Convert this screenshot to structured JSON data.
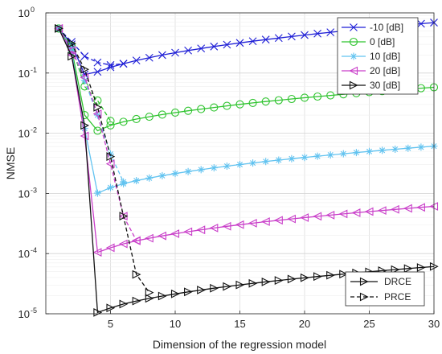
{
  "chart_data": {
    "type": "line",
    "title": "",
    "xlabel": "Dimension of the regression model",
    "ylabel": "NMSE",
    "xlim": [
      0,
      30
    ],
    "ylim": [
      1e-05,
      1
    ],
    "yscale": "log",
    "x_ticks": [
      5,
      10,
      15,
      20,
      25,
      30
    ],
    "x_tick_labels": [
      "5",
      "10",
      "15",
      "20",
      "25",
      "30"
    ],
    "y_ticks": [
      1e-05,
      0.0001,
      0.001,
      0.01,
      0.1,
      1
    ],
    "y_tick_labels": [
      {
        "base": "10",
        "exp": "-5"
      },
      {
        "base": "10",
        "exp": "-4"
      },
      {
        "base": "10",
        "exp": "-3"
      },
      {
        "base": "10",
        "exp": "-2"
      },
      {
        "base": "10",
        "exp": "-1"
      },
      {
        "base": "10",
        "exp": "0"
      }
    ],
    "grid": true,
    "minor_grid": true,
    "snr_legend": {
      "position": "top-right",
      "entries": [
        {
          "label": "-10 [dB]",
          "color": "#1f1fd6",
          "marker": "x"
        },
        {
          "label": "0 [dB]",
          "color": "#2fc42f",
          "marker": "circle"
        },
        {
          "label": "10 [dB]",
          "color": "#62c3f0",
          "marker": "star"
        },
        {
          "label": "20 [dB]",
          "color": "#c93ec9",
          "marker": "triangle-left"
        },
        {
          "label": "30 [dB]",
          "color": "#111111",
          "marker": "triangle-right"
        }
      ]
    },
    "method_legend": {
      "position": "bottom-right",
      "entries": [
        {
          "label": "DRCE",
          "style": "solid",
          "marker": "triangle-right"
        },
        {
          "label": "PRCE",
          "style": "dashed",
          "marker": "triangle-right-open"
        }
      ]
    },
    "series": [
      {
        "name": "-10 [dB]",
        "method": "DRCE",
        "color": "#1f1fd6",
        "marker": "x",
        "dash": "solid",
        "x": [
          1,
          2,
          3,
          4,
          5,
          6,
          7,
          8,
          9,
          10,
          11,
          12,
          13,
          14,
          15,
          16,
          17,
          18,
          19,
          20,
          21,
          22,
          23,
          24,
          25,
          26,
          27,
          28,
          29,
          30
        ],
        "y": [
          0.55,
          0.3,
          0.095,
          0.105,
          0.125,
          0.143,
          0.162,
          0.18,
          0.199,
          0.218,
          0.237,
          0.256,
          0.276,
          0.296,
          0.317,
          0.338,
          0.36,
          0.382,
          0.405,
          0.428,
          0.452,
          0.476,
          0.501,
          0.526,
          0.552,
          0.578,
          0.605,
          0.632,
          0.66,
          0.69
        ]
      },
      {
        "name": "-10 [dB]",
        "method": "PRCE",
        "color": "#1f1fd6",
        "marker": "x",
        "dash": "dashed",
        "x": [
          1,
          2,
          3,
          4,
          5,
          6
        ],
        "y": [
          0.55,
          0.33,
          0.19,
          0.15,
          0.136,
          0.143
        ]
      },
      {
        "name": "0 [dB]",
        "method": "DRCE",
        "color": "#2fc42f",
        "marker": "circle",
        "dash": "solid",
        "x": [
          1,
          2,
          3,
          4,
          5,
          6,
          7,
          8,
          9,
          10,
          11,
          12,
          13,
          14,
          15,
          16,
          17,
          18,
          19,
          20,
          21,
          22,
          23,
          24,
          25,
          26,
          27,
          28,
          29,
          30
        ],
        "y": [
          0.55,
          0.25,
          0.02,
          0.011,
          0.0135,
          0.0155,
          0.0172,
          0.0188,
          0.0204,
          0.022,
          0.0236,
          0.0252,
          0.0268,
          0.0285,
          0.0302,
          0.0319,
          0.0336,
          0.0353,
          0.0371,
          0.0389,
          0.0407,
          0.0425,
          0.0444,
          0.0463,
          0.0482,
          0.0501,
          0.052,
          0.054,
          0.056,
          0.058
        ]
      },
      {
        "name": "0 [dB]",
        "method": "PRCE",
        "color": "#2fc42f",
        "marker": "circle",
        "dash": "dashed",
        "x": [
          1,
          2,
          3,
          4,
          5
        ],
        "y": [
          0.55,
          0.28,
          0.06,
          0.035,
          0.016
        ]
      },
      {
        "name": "10 [dB]",
        "method": "DRCE",
        "color": "#62c3f0",
        "marker": "star",
        "dash": "solid",
        "x": [
          1,
          2,
          3,
          4,
          5,
          6,
          7,
          8,
          9,
          10,
          11,
          12,
          13,
          14,
          15,
          16,
          17,
          18,
          19,
          20,
          21,
          22,
          23,
          24,
          25,
          26,
          27,
          28,
          29,
          30
        ],
        "y": [
          0.55,
          0.22,
          0.012,
          0.00101,
          0.00125,
          0.00145,
          0.00163,
          0.0018,
          0.00197,
          0.00214,
          0.00231,
          0.00248,
          0.00266,
          0.00284,
          0.00302,
          0.0032,
          0.00339,
          0.00358,
          0.00377,
          0.00396,
          0.00416,
          0.00436,
          0.00456,
          0.00477,
          0.00498,
          0.0052,
          0.00542,
          0.00564,
          0.00587,
          0.0061
        ]
      },
      {
        "name": "10 [dB]",
        "method": "PRCE",
        "color": "#62c3f0",
        "marker": "star",
        "dash": "dashed",
        "x": [
          1,
          2,
          3,
          4,
          5,
          6
        ],
        "y": [
          0.55,
          0.26,
          0.075,
          0.02,
          0.0045,
          0.00155
        ]
      },
      {
        "name": "20 [dB]",
        "method": "DRCE",
        "color": "#c93ec9",
        "marker": "triangle-left",
        "dash": "solid",
        "x": [
          1,
          2,
          3,
          4,
          5,
          6,
          7,
          8,
          9,
          10,
          11,
          12,
          13,
          14,
          15,
          16,
          17,
          18,
          19,
          20,
          21,
          22,
          23,
          24,
          25,
          26,
          27,
          28,
          29,
          30
        ],
        "y": [
          0.55,
          0.2,
          0.009,
          0.000105,
          0.000125,
          0.000145,
          0.000163,
          0.00018,
          0.000197,
          0.000214,
          0.000231,
          0.000248,
          0.000266,
          0.000284,
          0.000302,
          0.00032,
          0.000339,
          0.000358,
          0.000377,
          0.000396,
          0.000416,
          0.000436,
          0.000456,
          0.000477,
          0.000498,
          0.00052,
          0.000542,
          0.000564,
          0.000587,
          0.00061
        ]
      },
      {
        "name": "20 [dB]",
        "method": "PRCE",
        "color": "#c93ec9",
        "marker": "triangle-left",
        "dash": "dashed",
        "x": [
          1,
          2,
          3,
          4,
          5,
          6,
          7
        ],
        "y": [
          0.55,
          0.24,
          0.085,
          0.021,
          0.0031,
          0.00042,
          0.000165
        ]
      },
      {
        "name": "30 [dB]",
        "method": "DRCE",
        "color": "#111111",
        "marker": "triangle-right",
        "dash": "solid",
        "x": [
          1,
          2,
          3,
          4,
          5,
          6,
          7,
          8,
          9,
          10,
          11,
          12,
          13,
          14,
          15,
          16,
          17,
          18,
          19,
          20,
          21,
          22,
          23,
          24,
          25,
          26,
          27,
          28,
          29,
          30
        ],
        "y": [
          0.55,
          0.19,
          0.0135,
          1.05e-05,
          1.25e-05,
          1.45e-05,
          1.63e-05,
          1.8e-05,
          1.97e-05,
          2.14e-05,
          2.31e-05,
          2.48e-05,
          2.66e-05,
          2.84e-05,
          3.02e-05,
          3.2e-05,
          3.39e-05,
          3.58e-05,
          3.77e-05,
          3.96e-05,
          4.16e-05,
          4.36e-05,
          4.56e-05,
          4.77e-05,
          4.98e-05,
          5.2e-05,
          5.42e-05,
          5.64e-05,
          5.87e-05,
          6.1e-05
        ]
      },
      {
        "name": "30 [dB]",
        "method": "PRCE",
        "color": "#111111",
        "marker": "triangle-right",
        "dash": "dashed",
        "x": [
          1,
          2,
          3,
          4,
          5,
          6,
          7,
          8
        ],
        "y": [
          0.55,
          0.31,
          0.115,
          0.027,
          0.0041,
          0.00042,
          4.5e-05,
          2.25e-05
        ]
      }
    ]
  }
}
